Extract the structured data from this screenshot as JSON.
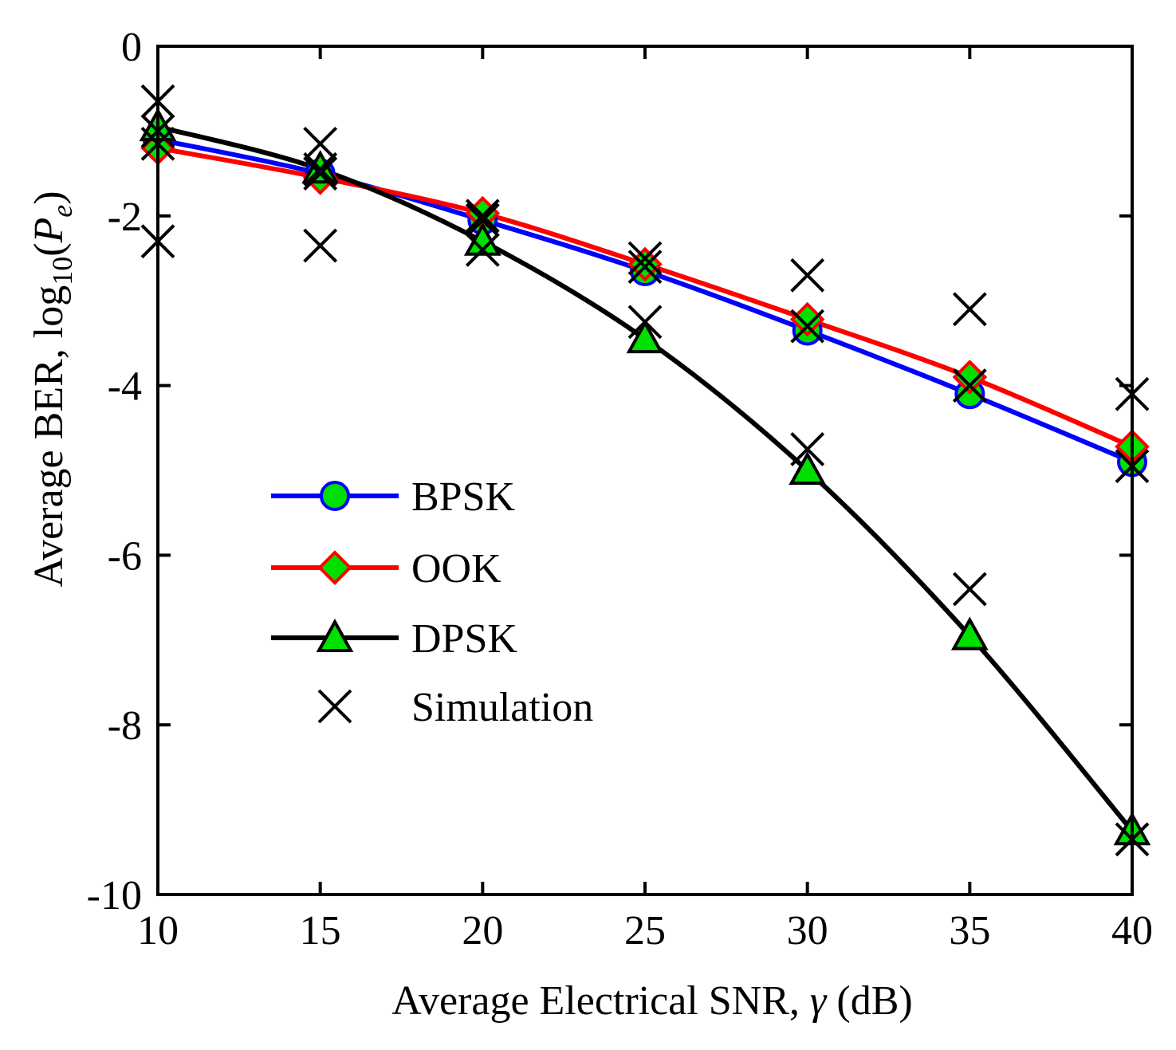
{
  "chart_data": {
    "type": "line",
    "title": "",
    "xlabel_prefix": "Average Electrical SNR, ",
    "xlabel_symbol": "γ",
    "xlabel_suffix": " (dB)",
    "ylabel_prefix": "Average BER, log",
    "ylabel_sub": "10",
    "ylabel_open": "(",
    "ylabel_var": "P",
    "ylabel_varsub": "e",
    "ylabel_close": ")",
    "xlim": [
      10,
      40
    ],
    "ylim": [
      -10,
      0
    ],
    "xticks": [
      "10",
      "15",
      "20",
      "25",
      "30",
      "35",
      "40"
    ],
    "yticks": [
      "0",
      "-2",
      "-4",
      "-6",
      "-8",
      "-10"
    ],
    "grid": false,
    "legend_position": "center-left",
    "x": [
      10,
      15,
      20,
      25,
      30,
      35,
      40
    ],
    "series": [
      {
        "name": "BPSK",
        "color": "#0000ff",
        "marker": "circle",
        "marker_fill": "#00e000",
        "values": [
          -1.1,
          -1.5,
          -2.05,
          -2.65,
          -3.35,
          -4.1,
          -4.9
        ]
      },
      {
        "name": "OOK",
        "color": "#ff0000",
        "marker": "diamond",
        "marker_fill": "#00e000",
        "values": [
          -1.2,
          -1.55,
          -1.97,
          -2.57,
          -3.22,
          -3.9,
          -4.72
        ]
      },
      {
        "name": "DPSK",
        "color": "#000000",
        "marker": "triangle",
        "marker_fill": "#00e000",
        "values": [
          -0.95,
          -1.45,
          -2.3,
          -3.45,
          -5.0,
          -6.95,
          -9.25
        ]
      }
    ],
    "simulation": {
      "name": "Simulation",
      "color": "#000000",
      "marker": "x",
      "points": [
        [
          10,
          -0.65
        ],
        [
          10,
          -1.0
        ],
        [
          10,
          -1.15
        ],
        [
          10,
          -2.3
        ],
        [
          15,
          -1.15
        ],
        [
          15,
          -1.45
        ],
        [
          15,
          -1.5
        ],
        [
          15,
          -2.35
        ],
        [
          20,
          -2.0
        ],
        [
          20,
          -2.05
        ],
        [
          20,
          -2.4
        ],
        [
          25,
          -2.5
        ],
        [
          25,
          -2.6
        ],
        [
          25,
          -3.25
        ],
        [
          30,
          -2.7
        ],
        [
          30,
          -3.3
        ],
        [
          30,
          -4.75
        ],
        [
          35,
          -3.1
        ],
        [
          35,
          -4.0
        ],
        [
          35,
          -6.4
        ],
        [
          40,
          -4.1
        ],
        [
          40,
          -4.95
        ],
        [
          40,
          -9.35
        ]
      ]
    }
  }
}
